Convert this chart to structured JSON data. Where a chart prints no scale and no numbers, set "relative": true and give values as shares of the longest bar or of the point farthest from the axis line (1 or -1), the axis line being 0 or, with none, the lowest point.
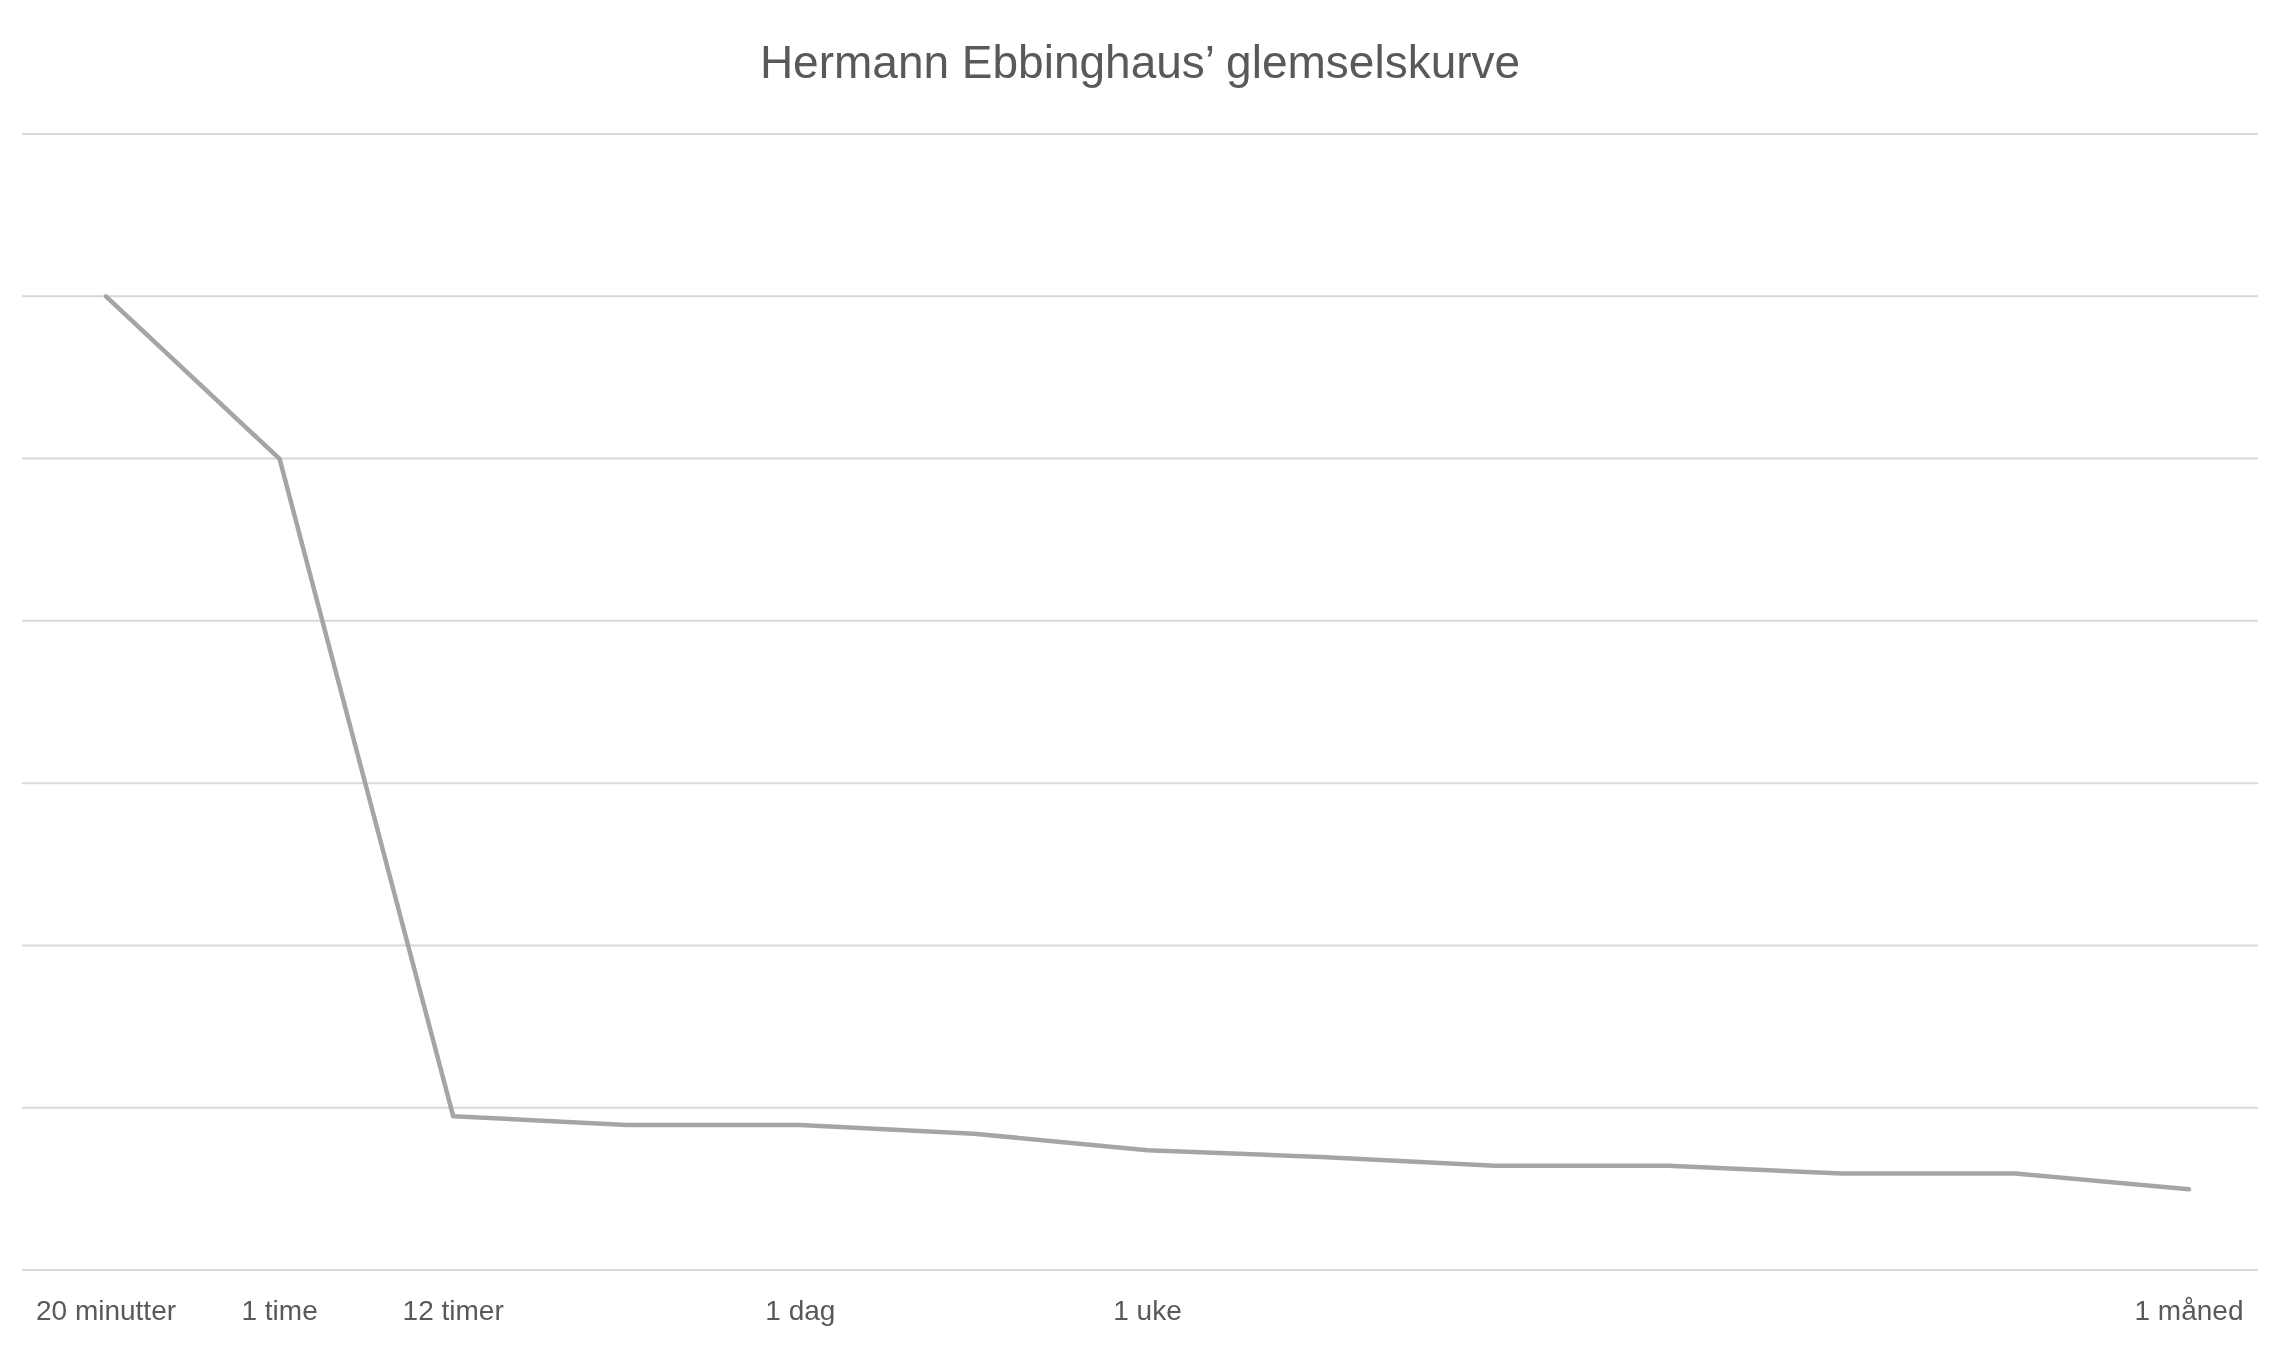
{
  "chart_data": {
    "type": "line",
    "title": "Hermann Ebbinghaus’ glemselskurve",
    "relative": true,
    "grid": true,
    "marker": "none",
    "line_style": "solid",
    "categories": [
      "20 minutter",
      "1 time",
      "12 timer",
      null,
      "1 dag",
      null,
      "1 uke",
      null,
      null,
      null,
      null,
      null,
      "1 måned"
    ],
    "series": [
      {
        "color": "#a5a5a5",
        "values": [
          1.0,
          0.833,
          0.158,
          0.149,
          0.149,
          0.14,
          0.123,
          0.116,
          0.107,
          0.107,
          0.099,
          0.099,
          0.083
        ]
      }
    ]
  }
}
